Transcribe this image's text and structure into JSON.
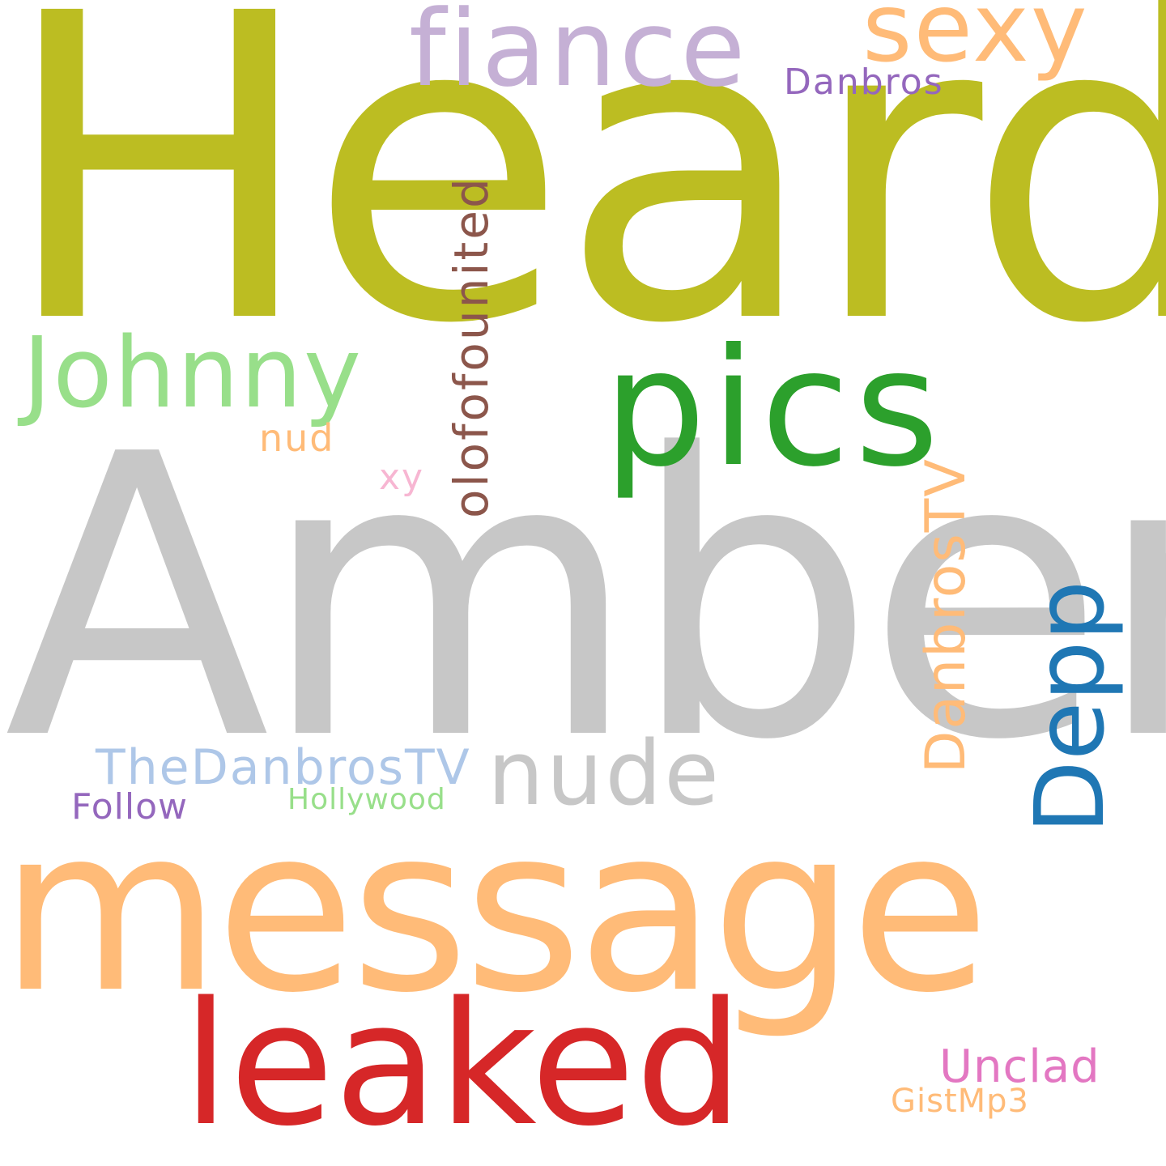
{
  "words": {
    "heard": {
      "text": "Heard",
      "color": "#bcbd22"
    },
    "amber": {
      "text": "Amber",
      "color": "#c7c7c7"
    },
    "message": {
      "text": "message",
      "color": "#ffbb78"
    },
    "leaked": {
      "text": "leaked",
      "color": "#d62728"
    },
    "pics": {
      "text": "pics",
      "color": "#2ca02c"
    },
    "fiance": {
      "text": "fiance",
      "color": "#c5b0d5"
    },
    "sexy": {
      "text": "sexy",
      "color": "#ffbb78"
    },
    "johnny": {
      "text": "Johnny",
      "color": "#98df8a"
    },
    "nude": {
      "text": "nude",
      "color": "#c7c7c7"
    },
    "depp": {
      "text": "Depp",
      "color": "#1f77b4"
    },
    "danbrostv": {
      "text": "DanbrosTV",
      "color": "#ffbb78"
    },
    "olofofounited": {
      "text": "olofofounited",
      "color": "#8c564b"
    },
    "thedanbrostv": {
      "text": "TheDanbrosTV",
      "color": "#aec7e8"
    },
    "danbros": {
      "text": "Danbros",
      "color": "#9467bd"
    },
    "unclad": {
      "text": "Unclad",
      "color": "#e377c2"
    },
    "follow": {
      "text": "Follow",
      "color": "#9467bd"
    },
    "hollywood": {
      "text": "Hollywood",
      "color": "#98df8a"
    },
    "gistmp3": {
      "text": "GistMp3",
      "color": "#ffbb78"
    },
    "nud": {
      "text": "nud",
      "color": "#ffbb78"
    },
    "xy": {
      "text": "xy",
      "color": "#f7b6d2"
    }
  }
}
